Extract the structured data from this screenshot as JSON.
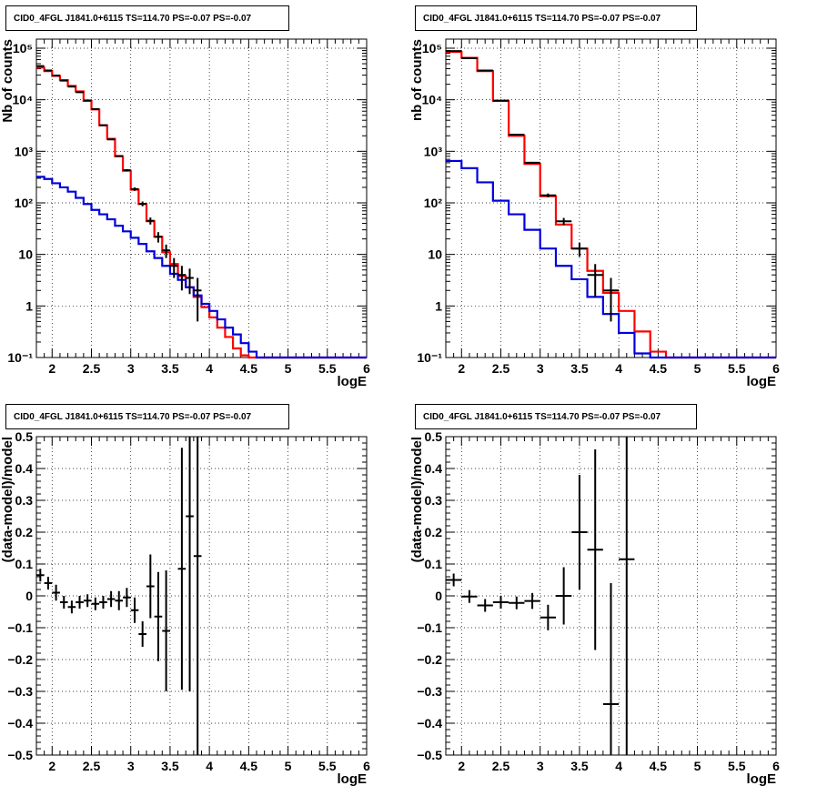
{
  "chart_data": [
    {
      "type": "line",
      "title": "CID0_4FGL J1841.0+6115 TS=114.70 PS=-0.07 PS=-0.07",
      "xlabel": "logE",
      "ylabel": "Nb of counts",
      "xlim": [
        1.8,
        6.0
      ],
      "ylim": [
        0.1,
        150000
      ],
      "yscale": "log",
      "grid": true,
      "xticks": [
        "2",
        "2.5",
        "3",
        "3.5",
        "4",
        "4.5",
        "5",
        "5.5",
        "6"
      ],
      "yticks": [
        "10⁻¹",
        "1",
        "10",
        "10²",
        "10³",
        "10⁴",
        "10⁵"
      ],
      "edges": [
        1.8,
        1.9,
        2.0,
        2.1,
        2.2,
        2.3,
        2.4,
        2.5,
        2.6,
        2.7,
        2.8,
        2.9,
        3.0,
        3.1,
        3.2,
        3.3,
        3.4,
        3.5,
        3.6,
        3.7,
        3.8,
        3.9,
        4.0,
        4.1,
        4.2,
        4.3,
        4.4,
        4.5,
        4.6,
        4.7,
        4.8,
        4.9,
        5.0,
        5.1,
        5.2,
        5.3,
        5.4,
        5.5,
        5.6,
        5.7,
        5.8,
        5.9,
        6.0
      ],
      "series": [
        {
          "color": "#ff0000",
          "values": [
            42000,
            36000,
            29000,
            24000,
            18500,
            14500,
            9500,
            6500,
            3200,
            1750,
            800,
            420,
            180,
            95,
            44,
            22,
            11,
            6.5,
            3.8,
            2.3,
            1.5,
            0.95,
            0.6,
            0.38,
            0.25,
            0.15,
            0.11,
            0.1,
            0.1,
            0.1,
            0.1,
            0.1,
            0.1,
            0.1,
            0.1,
            0.1,
            0.1,
            0.1,
            0.1,
            0.1,
            0.1,
            0.1
          ]
        },
        {
          "color": "#0000dd",
          "values": [
            320,
            290,
            240,
            200,
            165,
            125,
            95,
            73,
            60,
            48,
            36,
            28,
            21,
            16,
            11.5,
            8.5,
            6,
            4.2,
            3.2,
            2.3,
            1.6,
            1.1,
            0.8,
            0.55,
            0.38,
            0.28,
            0.19,
            0.13,
            0.1,
            0.1,
            0.1,
            0.1,
            0.1,
            0.1,
            0.1,
            0.1,
            0.1,
            0.1,
            0.1,
            0.1,
            0.1,
            0.1
          ]
        },
        {
          "color": "#000000",
          "type": "points",
          "values": [
            45000,
            37000,
            29500,
            23500,
            18000,
            14000,
            9700,
            6600,
            3200,
            1700,
            810,
            430,
            185,
            96,
            45,
            22,
            12,
            6,
            4,
            3.5,
            2
          ],
          "xerr": 0.05,
          "yerr": [
            200,
            180,
            170,
            150,
            130,
            120,
            100,
            80,
            60,
            40,
            30,
            20,
            14,
            10,
            7,
            5,
            3.5,
            2.5,
            2,
            1.8,
            1.5
          ]
        }
      ]
    },
    {
      "type": "line",
      "title": "CID0_4FGL J1841.0+6115 TS=114.70 PS=-0.07 PS=-0.07",
      "xlabel": "logE",
      "ylabel": "nb of counts",
      "xlim": [
        1.8,
        6.0
      ],
      "ylim": [
        0.1,
        150000
      ],
      "yscale": "log",
      "grid": true,
      "xticks": [
        "2",
        "2.5",
        "3",
        "3.5",
        "4",
        "4.5",
        "5",
        "5.5",
        "6"
      ],
      "yticks": [
        "10⁻¹",
        "1",
        "10",
        "10²",
        "10³",
        "10⁴",
        "10⁵"
      ],
      "edges": [
        1.8,
        2.0,
        2.2,
        2.4,
        2.6,
        2.8,
        3.0,
        3.2,
        3.4,
        3.6,
        3.8,
        4.0,
        4.2,
        4.4,
        4.6,
        4.8,
        5.0,
        5.2,
        5.4,
        5.6,
        5.8,
        6.0
      ],
      "series": [
        {
          "color": "#ff0000",
          "values": [
            85000,
            65000,
            36000,
            9500,
            2000,
            570,
            135,
            38,
            13,
            4.8,
            1.8,
            0.8,
            0.32,
            0.13,
            0.1,
            0.1,
            0.1,
            0.1,
            0.1,
            0.1,
            0.1
          ]
        },
        {
          "color": "#0000dd",
          "values": [
            650,
            470,
            250,
            110,
            60,
            30,
            13,
            6,
            3.3,
            1.5,
            0.7,
            0.3,
            0.12,
            0.1,
            0.1,
            0.1,
            0.1,
            0.1,
            0.1,
            0.1,
            0.1
          ]
        },
        {
          "color": "#000000",
          "type": "points",
          "values": [
            88000,
            64000,
            37000,
            9600,
            2100,
            600,
            140,
            44,
            13,
            4,
            2
          ],
          "xerr": 0.1,
          "yerr": [
            300,
            250,
            190,
            100,
            45,
            24,
            12,
            7,
            4,
            2.5,
            1.5
          ]
        }
      ]
    },
    {
      "type": "scatter",
      "title": "CID0_4FGL J1841.0+6115 TS=114.70 PS=-0.07 PS=-0.07",
      "xlabel": "logE",
      "ylabel": "(data-model)/model",
      "xlim": [
        1.8,
        6.0
      ],
      "ylim": [
        -0.5,
        0.5
      ],
      "grid": true,
      "xticks": [
        "2",
        "2.5",
        "3",
        "3.5",
        "4",
        "4.5",
        "5",
        "5.5",
        "6"
      ],
      "yticks": [
        "−0.5",
        "−0.4",
        "−0.3",
        "−0.2",
        "−0.1",
        "0",
        "0.1",
        "0.2",
        "0.3",
        "0.4",
        "0.5"
      ],
      "points": [
        {
          "x": 1.85,
          "y": 0.065,
          "yerr": 0.02
        },
        {
          "x": 1.95,
          "y": 0.04,
          "yerr": 0.02
        },
        {
          "x": 2.05,
          "y": 0.01,
          "yerr": 0.025
        },
        {
          "x": 2.15,
          "y": -0.02,
          "yerr": 0.02
        },
        {
          "x": 2.25,
          "y": -0.035,
          "yerr": 0.02
        },
        {
          "x": 2.35,
          "y": -0.02,
          "yerr": 0.02
        },
        {
          "x": 2.45,
          "y": -0.015,
          "yerr": 0.02
        },
        {
          "x": 2.55,
          "y": -0.025,
          "yerr": 0.02
        },
        {
          "x": 2.65,
          "y": -0.02,
          "yerr": 0.02
        },
        {
          "x": 2.75,
          "y": -0.01,
          "yerr": 0.025
        },
        {
          "x": 2.85,
          "y": -0.015,
          "yerr": 0.03
        },
        {
          "x": 2.95,
          "y": -0.005,
          "yerr": 0.03
        },
        {
          "x": 3.05,
          "y": -0.045,
          "yerr": 0.04
        },
        {
          "x": 3.15,
          "y": -0.12,
          "yerr": 0.04
        },
        {
          "x": 3.25,
          "y": 0.03,
          "yerr": 0.1
        },
        {
          "x": 3.35,
          "y": -0.065,
          "yerr": 0.14
        },
        {
          "x": 3.45,
          "y": -0.11,
          "yerr": 0.19
        },
        {
          "x": 3.55,
          "y": null,
          "yerr": null
        },
        {
          "x": 3.65,
          "y": 0.085,
          "yerr": 0.38
        },
        {
          "x": 3.75,
          "y": 0.25,
          "yerr": 0.55
        },
        {
          "x": 3.85,
          "y": 0.125,
          "yerr": 0.7
        }
      ]
    },
    {
      "type": "scatter",
      "title": "CID0_4FGL J1841.0+6115 TS=114.70 PS=-0.07 PS=-0.07",
      "xlabel": "logE",
      "ylabel": "(data-model)/model",
      "xlim": [
        1.8,
        6.0
      ],
      "ylim": [
        -0.5,
        0.5
      ],
      "grid": true,
      "xticks": [
        "2",
        "2.5",
        "3",
        "3.5",
        "4",
        "4.5",
        "5",
        "5.5",
        "6"
      ],
      "yticks": [
        "−0.5",
        "−0.4",
        "−0.3",
        "−0.2",
        "−0.1",
        "0",
        "0.1",
        "0.2",
        "0.3",
        "0.4",
        "0.5"
      ],
      "xerr": 0.1,
      "points": [
        {
          "x": 1.9,
          "y": 0.05,
          "yerr": 0.02
        },
        {
          "x": 2.1,
          "y": -0.002,
          "yerr": 0.02
        },
        {
          "x": 2.3,
          "y": -0.03,
          "yerr": 0.02
        },
        {
          "x": 2.5,
          "y": -0.02,
          "yerr": 0.02
        },
        {
          "x": 2.7,
          "y": -0.022,
          "yerr": 0.02
        },
        {
          "x": 2.9,
          "y": -0.016,
          "yerr": 0.025
        },
        {
          "x": 3.1,
          "y": -0.068,
          "yerr": 0.04
        },
        {
          "x": 3.3,
          "y": 0.0,
          "yerr": 0.09
        },
        {
          "x": 3.5,
          "y": 0.2,
          "yerr": 0.18
        },
        {
          "x": 3.7,
          "y": 0.145,
          "yerr": 0.315
        },
        {
          "x": 3.9,
          "y": -0.34,
          "yerr": 0.38
        },
        {
          "x": 4.1,
          "y": 0.115,
          "yerr": 0.7
        }
      ]
    }
  ]
}
